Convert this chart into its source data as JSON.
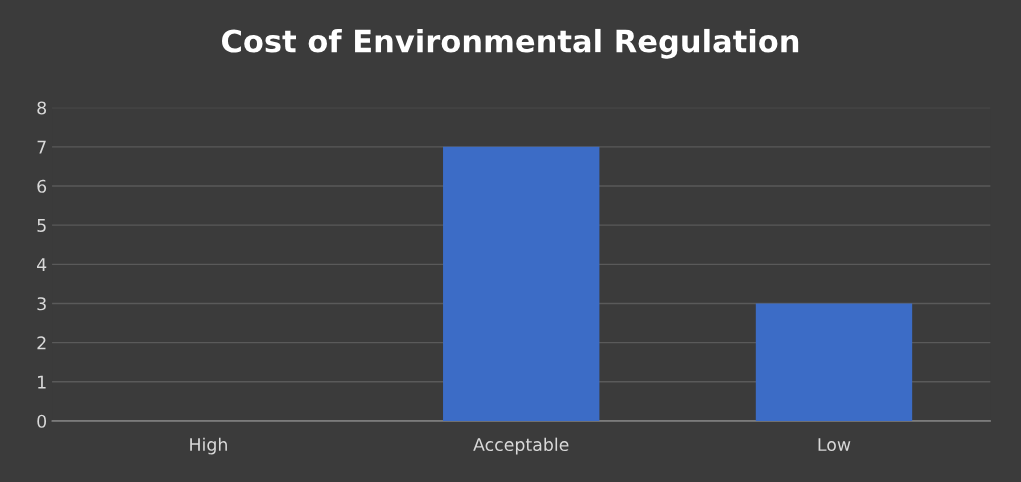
{
  "chart_data": {
    "type": "bar",
    "title": "Cost of Environmental Regulation",
    "categories": [
      "High",
      "Acceptable",
      "Low"
    ],
    "values": [
      0,
      7,
      3
    ],
    "color": "#3c6cc6",
    "ylim": [
      0,
      8
    ],
    "yticks": [
      0,
      1,
      2,
      3,
      4,
      5,
      6,
      7,
      8
    ],
    "grid": "y",
    "legend": false
  }
}
